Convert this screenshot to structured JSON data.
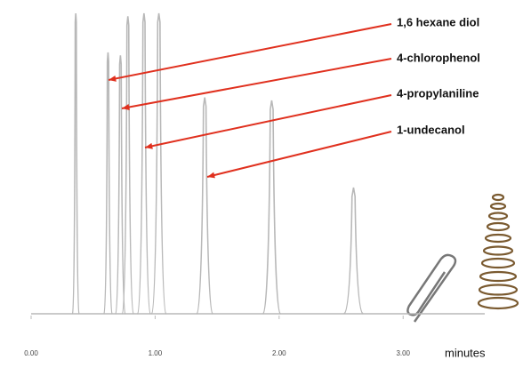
{
  "chart_data": {
    "type": "chromatogram",
    "x": [
      0.36,
      0.62,
      0.72,
      0.78,
      0.91,
      1.03,
      1.4,
      1.94,
      2.6
    ],
    "values": [
      10,
      8.7,
      8.6,
      9.9,
      10,
      10,
      7.2,
      7.1,
      4.2
    ],
    "color": "#b8b8b8",
    "xlim": [
      0,
      3.4
    ],
    "ylim": [
      0,
      10
    ],
    "xticks": [
      {
        "value": 0,
        "label": "0.00"
      },
      {
        "value": 1,
        "label": "1.00"
      },
      {
        "value": 2,
        "label": "2.00"
      },
      {
        "value": 3,
        "label": "3.00"
      }
    ],
    "xlabel": "minutes",
    "annotations": [
      "1,6 hexane diol",
      "4-chlorophenol",
      "4-propylaniline",
      "1-undecanol"
    ],
    "arrow_color": "#e0301e"
  }
}
